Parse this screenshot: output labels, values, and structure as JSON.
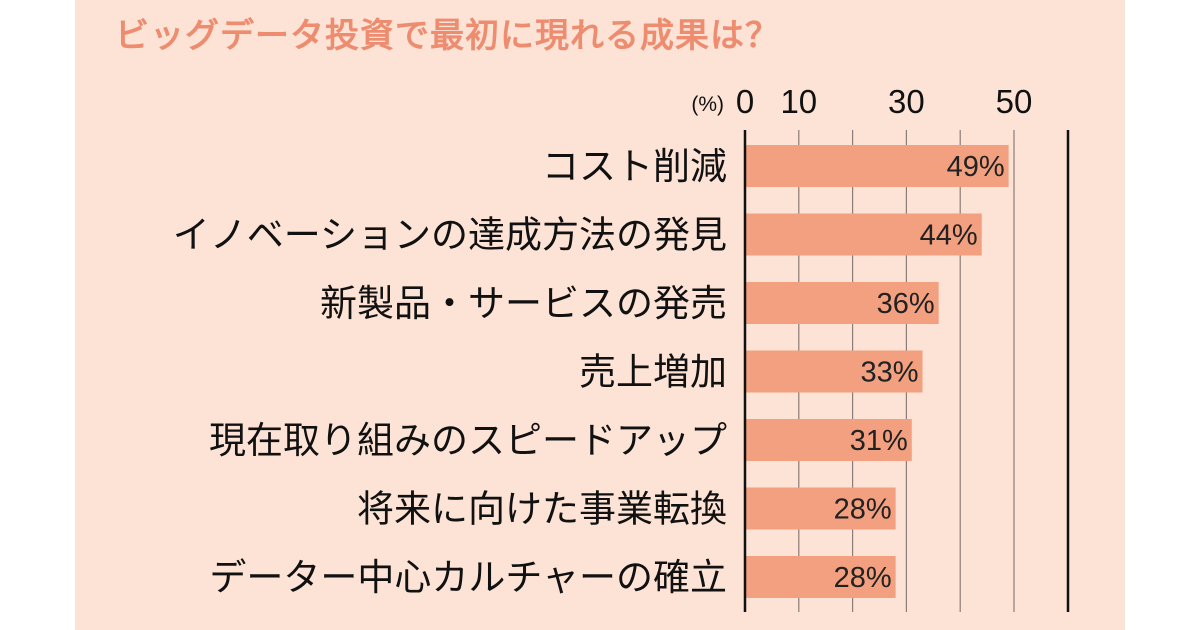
{
  "chart_data": {
    "type": "bar",
    "orientation": "horizontal",
    "title": "ビッグデータ投資で最初に現れる成果は？",
    "unit": "(%)",
    "categories": [
      "コスト削減",
      "イノベーションの達成方法の発見",
      "新製品・サービスの発売",
      "売上増加",
      "現在取り組みのスピードアップ",
      "将来に向けた事業転換",
      "データー中心カルチャーの確立"
    ],
    "values": [
      49,
      44,
      36,
      33,
      31,
      28,
      28
    ],
    "value_labels": [
      "49%",
      "44%",
      "36%",
      "33%",
      "31%",
      "28%",
      "28%"
    ],
    "tick_labels": [
      "0",
      "10",
      "30",
      "50"
    ],
    "tick_values": [
      0,
      10,
      30,
      50
    ],
    "gridline_values": [
      10,
      20,
      30,
      40,
      50
    ],
    "xlim": [
      0,
      60
    ],
    "grid": true,
    "colors": {
      "bar": "#f2a07f",
      "title": "#ee8c70",
      "background": "#fce3d6",
      "gridline": "#8a7c76",
      "axis": "#111111"
    }
  }
}
